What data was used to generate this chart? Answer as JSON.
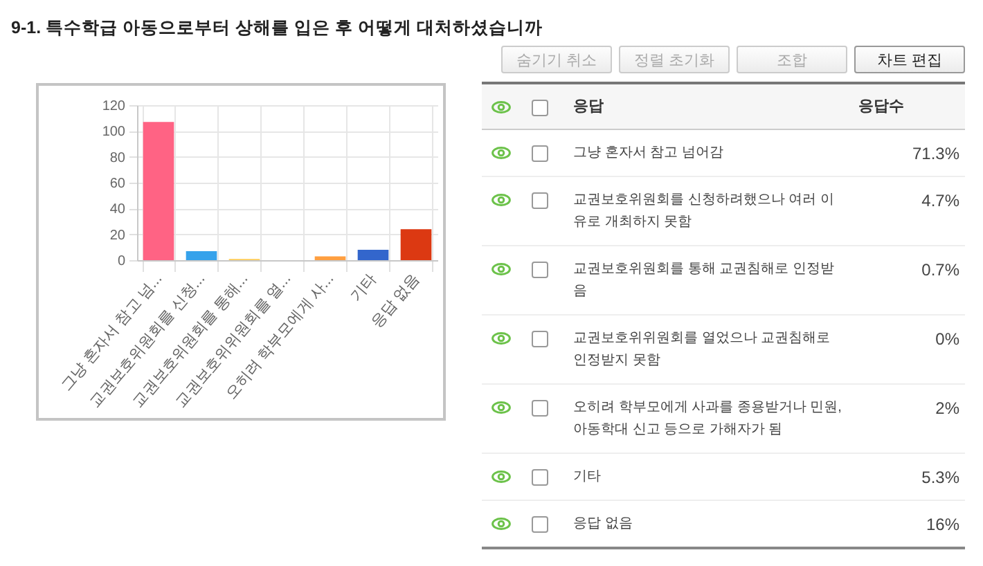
{
  "chart_data": [
    {
      "type": "bar",
      "title": "9-1. 특수학급 아동으로부터 상해를 입은 후 어떻게 대처하셨습니까",
      "categories": [
        "그냥 혼자서 참고 넘...",
        "교권보호위원회를 신청...",
        "교권보호위원회를 통해...",
        "교권보호위위원회를 열...",
        "오히려 학부모에게 사...",
        "기타",
        "응답 없음"
      ],
      "values": [
        107,
        7,
        1,
        0,
        3,
        8,
        24
      ],
      "colors": [
        "#ff6384",
        "#36a2eb",
        "#ffcd56",
        "#4bc0c0",
        "#ff9f40",
        "#3366cc",
        "#dc3912"
      ],
      "ylim": [
        0,
        120
      ],
      "yticks": [
        0,
        20,
        40,
        60,
        80,
        100,
        120
      ],
      "grid": true
    },
    {
      "type": "other",
      "categories": [
        "그냥 혼자서 참고 넘어감",
        "교권보호위원회를 신청하려했으나 여러 이유로 개최하지 못함",
        "교권보호위원회를 통해 교권침해로 인정받음",
        "교권보호위위원회를 열었으나 교권침해로 인정받지 못함",
        "오히려 학부모에게 사과를 종용받거나 민원, 아동학대 신고 등으로 가해자가 됨",
        "기타",
        "응답 없음"
      ],
      "value_labels": [
        "71.3%",
        "4.7%",
        "0.7%",
        "0%",
        "2%",
        "5.3%",
        "16%"
      ],
      "annotations": [
        "숨기기 취소",
        "정렬 초기화",
        "조합",
        "차트 편집",
        "응답",
        "응답수"
      ]
    }
  ]
}
